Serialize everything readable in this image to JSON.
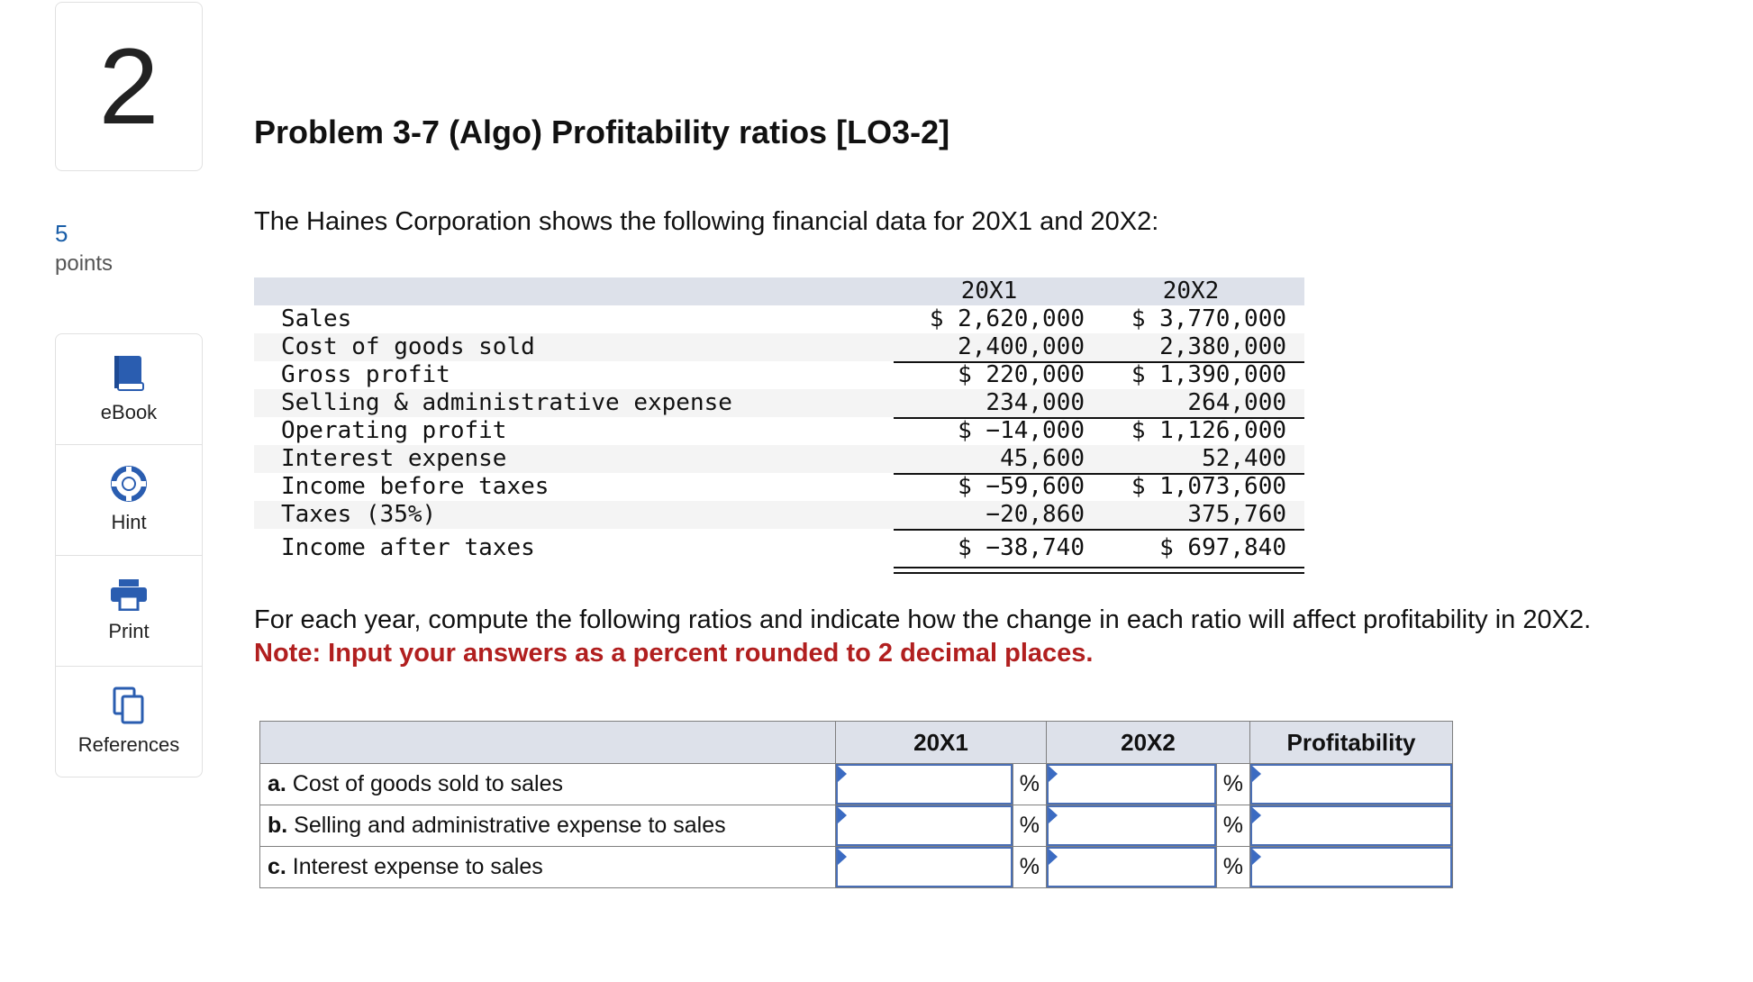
{
  "question": {
    "number": "2",
    "points_value": "5",
    "points_label": "points"
  },
  "tools": [
    {
      "label": "eBook",
      "icon": "book-icon"
    },
    {
      "label": "Hint",
      "icon": "lifebuoy-icon"
    },
    {
      "label": "Print",
      "icon": "printer-icon"
    },
    {
      "label": "References",
      "icon": "copy-pages-icon"
    }
  ],
  "problem": {
    "title": "Problem 3-7 (Algo) Profitability ratios [LO3-2]",
    "intro": "The Haines Corporation shows the following financial data for 20X1 and 20X2:"
  },
  "financials": {
    "col1": "20X1",
    "col2": "20X2",
    "rows": [
      {
        "label": "Sales",
        "v1": "$ 2,620,000",
        "v2": "$ 3,770,000"
      },
      {
        "label": "Cost of goods sold",
        "v1": "2,400,000",
        "v2": "2,380,000"
      },
      {
        "label": "Gross profit",
        "v1": "$ 220,000",
        "v2": "$ 1,390,000"
      },
      {
        "label": "Selling & administrative expense",
        "v1": "234,000",
        "v2": "264,000"
      },
      {
        "label": "Operating profit",
        "v1": "$ −14,000",
        "v2": "$ 1,126,000"
      },
      {
        "label": "Interest expense",
        "v1": "45,600",
        "v2": "52,400"
      },
      {
        "label": "Income before taxes",
        "v1": "$ −59,600",
        "v2": "$ 1,073,600"
      },
      {
        "label": "Taxes (35%)",
        "v1": "−20,860",
        "v2": "375,760"
      },
      {
        "label": "Income after taxes",
        "v1": "$ −38,740",
        "v2": "$ 697,840"
      }
    ]
  },
  "instructions": {
    "text": "For each year, compute the following ratios and indicate how the change in each ratio will affect profitability in 20X2.",
    "note": "Note: Input your answers as a percent rounded to 2 decimal places."
  },
  "answer_table": {
    "headers": [
      "",
      "20X1",
      "20X2",
      "Profitability"
    ],
    "percent_symbol": "%",
    "rows": [
      {
        "letter": "a.",
        "label": " Cost of goods sold to sales",
        "v1": "",
        "v2": "",
        "profit": ""
      },
      {
        "letter": "b.",
        "label": " Selling and administrative expense to sales",
        "v1": "",
        "v2": "",
        "profit": ""
      },
      {
        "letter": "c.",
        "label": " Interest expense to sales",
        "v1": "",
        "v2": "",
        "profit": ""
      }
    ]
  },
  "colors": {
    "accent_blue": "#4a6fb5",
    "note_red": "#b11f1f",
    "header_bg": "#dde1ea"
  }
}
